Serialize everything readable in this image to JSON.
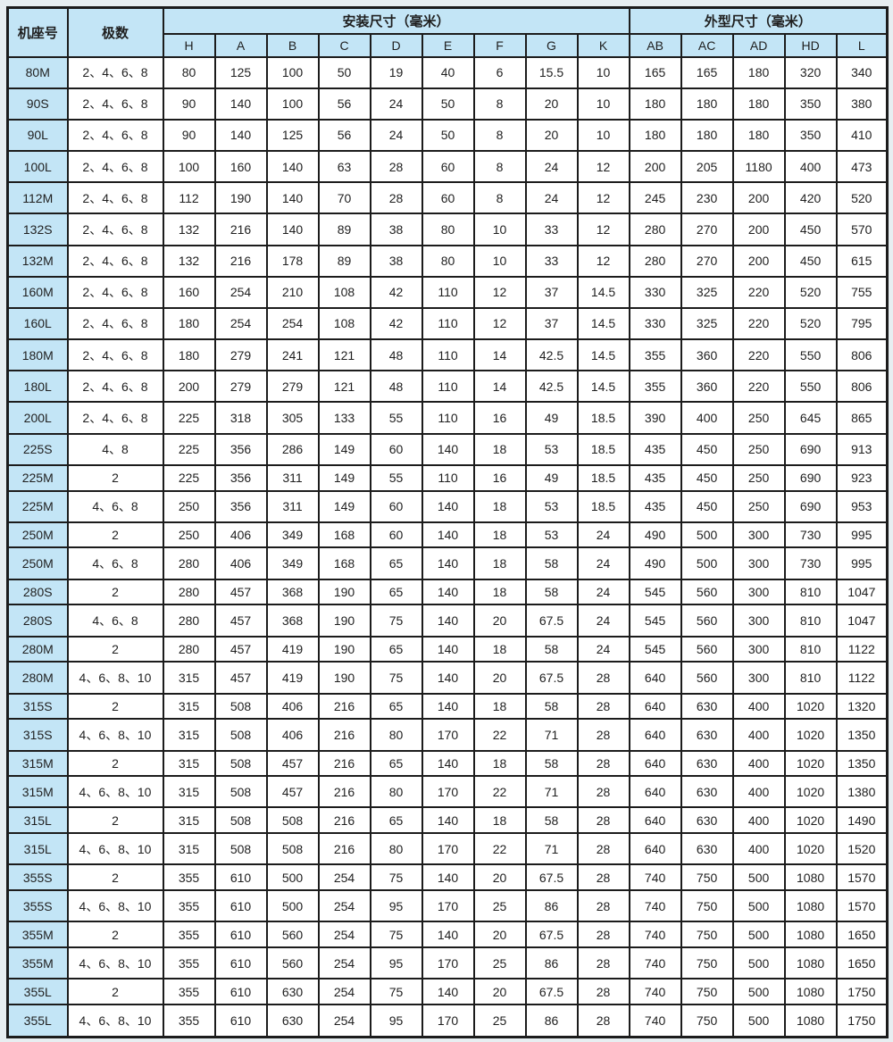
{
  "table": {
    "header": {
      "frame_col": "机座号",
      "poles_col": "极数",
      "mounting_group": "安装尺寸（毫米）",
      "outline_group": "外型尺寸（毫米）"
    },
    "sub_headers": [
      "H",
      "A",
      "B",
      "C",
      "D",
      "E",
      "F",
      "G",
      "K",
      "AB",
      "AC",
      "AD",
      "HD",
      "L"
    ],
    "rows": [
      [
        "80M",
        "2、4、6、8",
        "80",
        "125",
        "100",
        "50",
        "19",
        "40",
        "6",
        "15.5",
        "10",
        "165",
        "165",
        "180",
        "320",
        "340"
      ],
      [
        "90S",
        "2、4、6、8",
        "90",
        "140",
        "100",
        "56",
        "24",
        "50",
        "8",
        "20",
        "10",
        "180",
        "180",
        "180",
        "350",
        "380"
      ],
      [
        "90L",
        "2、4、6、8",
        "90",
        "140",
        "125",
        "56",
        "24",
        "50",
        "8",
        "20",
        "10",
        "180",
        "180",
        "180",
        "350",
        "410"
      ],
      [
        "100L",
        "2、4、6、8",
        "100",
        "160",
        "140",
        "63",
        "28",
        "60",
        "8",
        "24",
        "12",
        "200",
        "205",
        "1180",
        "400",
        "473"
      ],
      [
        "112M",
        "2、4、6、8",
        "112",
        "190",
        "140",
        "70",
        "28",
        "60",
        "8",
        "24",
        "12",
        "245",
        "230",
        "200",
        "420",
        "520"
      ],
      [
        "132S",
        "2、4、6、8",
        "132",
        "216",
        "140",
        "89",
        "38",
        "80",
        "10",
        "33",
        "12",
        "280",
        "270",
        "200",
        "450",
        "570"
      ],
      [
        "132M",
        "2、4、6、8",
        "132",
        "216",
        "178",
        "89",
        "38",
        "80",
        "10",
        "33",
        "12",
        "280",
        "270",
        "200",
        "450",
        "615"
      ],
      [
        "160M",
        "2、4、6、8",
        "160",
        "254",
        "210",
        "108",
        "42",
        "110",
        "12",
        "37",
        "14.5",
        "330",
        "325",
        "220",
        "520",
        "755"
      ],
      [
        "160L",
        "2、4、6、8",
        "180",
        "254",
        "254",
        "108",
        "42",
        "110",
        "12",
        "37",
        "14.5",
        "330",
        "325",
        "220",
        "520",
        "795"
      ],
      [
        "180M",
        "2、4、6、8",
        "180",
        "279",
        "241",
        "121",
        "48",
        "110",
        "14",
        "42.5",
        "14.5",
        "355",
        "360",
        "220",
        "550",
        "806"
      ],
      [
        "180L",
        "2、4、6、8",
        "200",
        "279",
        "279",
        "121",
        "48",
        "110",
        "14",
        "42.5",
        "14.5",
        "355",
        "360",
        "220",
        "550",
        "806"
      ],
      [
        "200L",
        "2、4、6、8",
        "225",
        "318",
        "305",
        "133",
        "55",
        "110",
        "16",
        "49",
        "18.5",
        "390",
        "400",
        "250",
        "645",
        "865"
      ],
      [
        "225S",
        "4、8",
        "225",
        "356",
        "286",
        "149",
        "60",
        "140",
        "18",
        "53",
        "18.5",
        "435",
        "450",
        "250",
        "690",
        "913"
      ],
      [
        "225M",
        "2",
        "225",
        "356",
        "311",
        "149",
        "55",
        "110",
        "16",
        "49",
        "18.5",
        "435",
        "450",
        "250",
        "690",
        "923"
      ],
      [
        "225M",
        "4、6、8",
        "250",
        "356",
        "311",
        "149",
        "60",
        "140",
        "18",
        "53",
        "18.5",
        "435",
        "450",
        "250",
        "690",
        "953"
      ],
      [
        "250M",
        "2",
        "250",
        "406",
        "349",
        "168",
        "60",
        "140",
        "18",
        "53",
        "24",
        "490",
        "500",
        "300",
        "730",
        "995"
      ],
      [
        "250M",
        "4、6、8",
        "280",
        "406",
        "349",
        "168",
        "65",
        "140",
        "18",
        "58",
        "24",
        "490",
        "500",
        "300",
        "730",
        "995"
      ],
      [
        "280S",
        "2",
        "280",
        "457",
        "368",
        "190",
        "65",
        "140",
        "18",
        "58",
        "24",
        "545",
        "560",
        "300",
        "810",
        "1047"
      ],
      [
        "280S",
        "4、6、8",
        "280",
        "457",
        "368",
        "190",
        "75",
        "140",
        "20",
        "67.5",
        "24",
        "545",
        "560",
        "300",
        "810",
        "1047"
      ],
      [
        "280M",
        "2",
        "280",
        "457",
        "419",
        "190",
        "65",
        "140",
        "18",
        "58",
        "24",
        "545",
        "560",
        "300",
        "810",
        "1122"
      ],
      [
        "280M",
        "4、6、8、10",
        "315",
        "457",
        "419",
        "190",
        "75",
        "140",
        "20",
        "67.5",
        "28",
        "640",
        "560",
        "300",
        "810",
        "1122"
      ],
      [
        "315S",
        "2",
        "315",
        "508",
        "406",
        "216",
        "65",
        "140",
        "18",
        "58",
        "28",
        "640",
        "630",
        "400",
        "1020",
        "1320"
      ],
      [
        "315S",
        "4、6、8、10",
        "315",
        "508",
        "406",
        "216",
        "80",
        "170",
        "22",
        "71",
        "28",
        "640",
        "630",
        "400",
        "1020",
        "1350"
      ],
      [
        "315M",
        "2",
        "315",
        "508",
        "457",
        "216",
        "65",
        "140",
        "18",
        "58",
        "28",
        "640",
        "630",
        "400",
        "1020",
        "1350"
      ],
      [
        "315M",
        "4、6、8、10",
        "315",
        "508",
        "457",
        "216",
        "80",
        "170",
        "22",
        "71",
        "28",
        "640",
        "630",
        "400",
        "1020",
        "1380"
      ],
      [
        "315L",
        "2",
        "315",
        "508",
        "508",
        "216",
        "65",
        "140",
        "18",
        "58",
        "28",
        "640",
        "630",
        "400",
        "1020",
        "1490"
      ],
      [
        "315L",
        "4、6、8、10",
        "315",
        "508",
        "508",
        "216",
        "80",
        "170",
        "22",
        "71",
        "28",
        "640",
        "630",
        "400",
        "1020",
        "1520"
      ],
      [
        "355S",
        "2",
        "355",
        "610",
        "500",
        "254",
        "75",
        "140",
        "20",
        "67.5",
        "28",
        "740",
        "750",
        "500",
        "1080",
        "1570"
      ],
      [
        "355S",
        "4、6、8、10",
        "355",
        "610",
        "500",
        "254",
        "95",
        "170",
        "25",
        "86",
        "28",
        "740",
        "750",
        "500",
        "1080",
        "1570"
      ],
      [
        "355M",
        "2",
        "355",
        "610",
        "560",
        "254",
        "75",
        "140",
        "20",
        "67.5",
        "28",
        "740",
        "750",
        "500",
        "1080",
        "1650"
      ],
      [
        "355M",
        "4、6、8、10",
        "355",
        "610",
        "560",
        "254",
        "95",
        "170",
        "25",
        "86",
        "28",
        "740",
        "750",
        "500",
        "1080",
        "1650"
      ],
      [
        "355L",
        "2",
        "355",
        "610",
        "630",
        "254",
        "75",
        "140",
        "20",
        "67.5",
        "28",
        "740",
        "750",
        "500",
        "1080",
        "1750"
      ],
      [
        "355L",
        "4、6、8、10",
        "355",
        "610",
        "630",
        "254",
        "95",
        "170",
        "25",
        "86",
        "28",
        "740",
        "750",
        "500",
        "1080",
        "1750"
      ]
    ]
  },
  "colors": {
    "header_bg": "#c3e5f6",
    "frame_col_bg": "#c3e5f6",
    "row_bg": "#ffffff",
    "border": "#1c1c1c",
    "text": "#1f1f1f",
    "page_bg": "#e7eef1"
  }
}
